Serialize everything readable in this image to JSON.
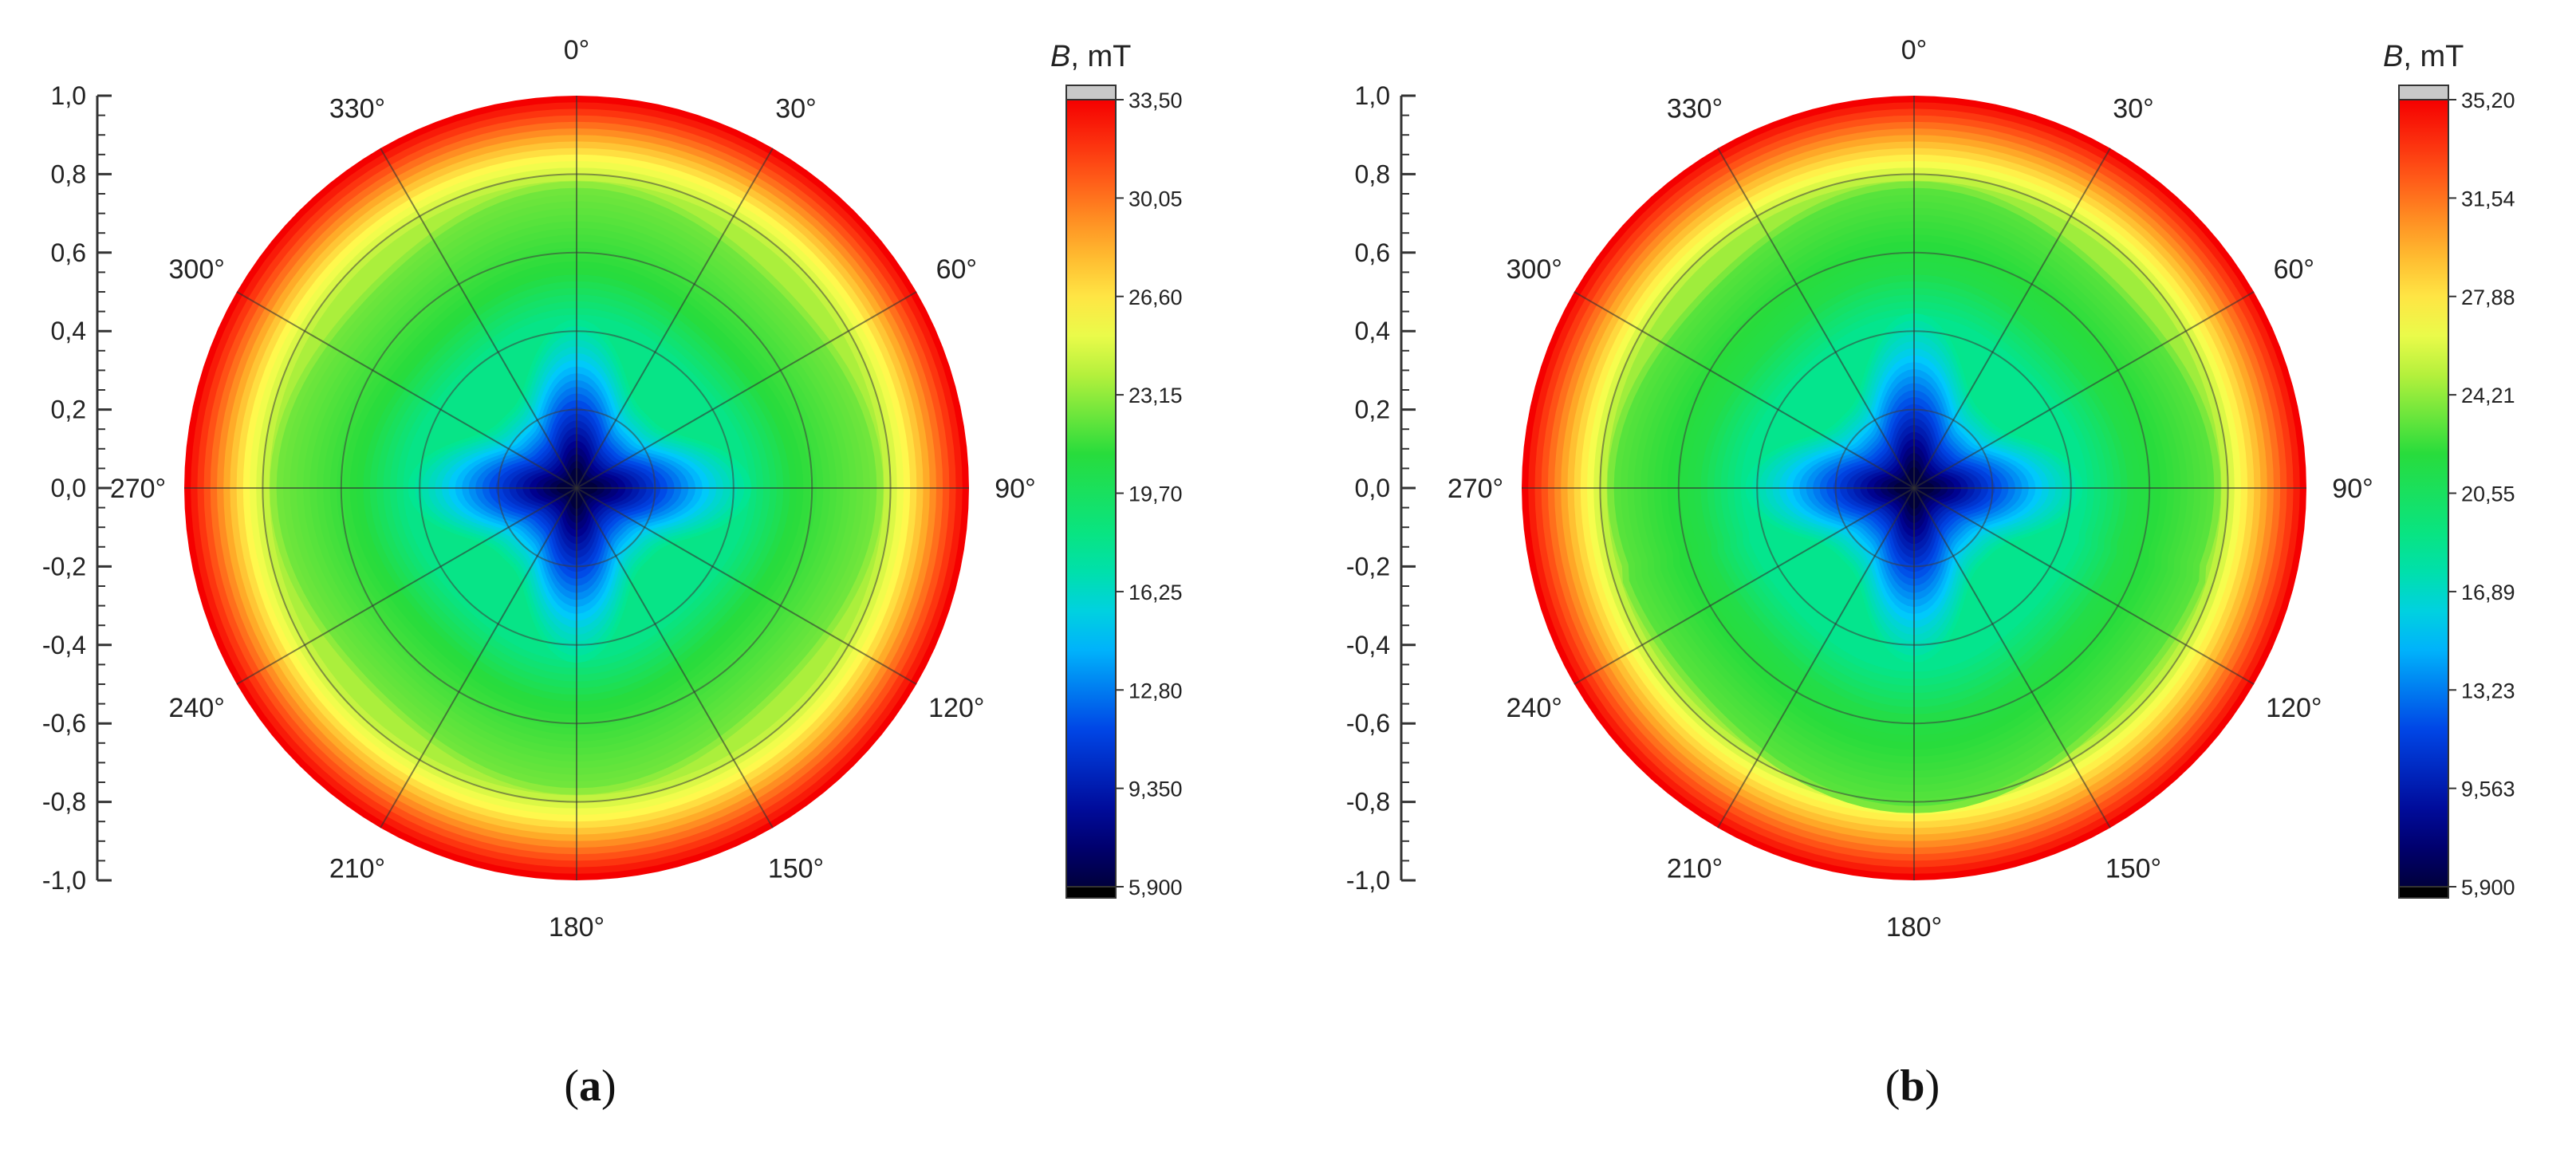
{
  "chart_data": [
    {
      "type": "heatmap",
      "subtype": "polar-contour",
      "panel_label": "a",
      "colorbar_title_var": "B",
      "colorbar_title_unit": ", mT",
      "y_ticks": [
        "1,0",
        "0,8",
        "0,6",
        "0,4",
        "0,2",
        "0,0",
        "-0,2",
        "-0,4",
        "-0,6",
        "-0,8",
        "-1,0"
      ],
      "ylim": [
        -1.0,
        1.0
      ],
      "angles": [
        0,
        30,
        60,
        90,
        120,
        150,
        180,
        210,
        240,
        270,
        300,
        330
      ],
      "angle_labels": [
        "0°",
        "30°",
        "60°",
        "90°",
        "120°",
        "150°",
        "180°",
        "210°",
        "240°",
        "270°",
        "300°",
        "330°"
      ],
      "colorbar_ticks": [
        "33,50",
        "30,05",
        "26,60",
        "23,15",
        "19,70",
        "16,25",
        "12,80",
        "9,350",
        "5,900"
      ],
      "colorbar_range": [
        5.9,
        33.5
      ],
      "rings_r": [
        0.05,
        0.2,
        0.35,
        0.55,
        0.75,
        0.85,
        0.92,
        0.97,
        1.0
      ],
      "rings_B": [
        5.9,
        11.0,
        16.0,
        21.0,
        22.5,
        26.0,
        29.5,
        32.0,
        33.5
      ],
      "lobe_strength": [
        0.55,
        0.6,
        0.6,
        0.55
      ],
      "side_bulge": 0.0
    },
    {
      "type": "heatmap",
      "subtype": "polar-contour",
      "panel_label": "b",
      "colorbar_title_var": "B",
      "colorbar_title_unit": ", mT",
      "y_ticks": [
        "1,0",
        "0,8",
        "0,6",
        "0,4",
        "0,2",
        "0,0",
        "-0,2",
        "-0,4",
        "-0,6",
        "-0,8",
        "-1,0"
      ],
      "ylim": [
        -1.0,
        1.0
      ],
      "angles": [
        0,
        30,
        60,
        90,
        120,
        150,
        180,
        210,
        240,
        270,
        300,
        330
      ],
      "angle_labels": [
        "0°",
        "30°",
        "60°",
        "90°",
        "120°",
        "150°",
        "180°",
        "210°",
        "240°",
        "270°",
        "300°",
        "330°"
      ],
      "colorbar_ticks": [
        "35,20",
        "31,54",
        "27,88",
        "24,21",
        "20,55",
        "16,89",
        "13,23",
        "9,563",
        "5,900"
      ],
      "colorbar_range": [
        5.9,
        35.2
      ],
      "rings_r": [
        0.05,
        0.2,
        0.35,
        0.55,
        0.75,
        0.85,
        0.92,
        0.97,
        1.0
      ],
      "rings_B": [
        5.9,
        11.5,
        16.5,
        21.5,
        23.0,
        27.5,
        31.0,
        33.5,
        35.2
      ],
      "lobe_strength": [
        0.6,
        0.55,
        0.6,
        0.55
      ],
      "side_bulge": 0.06
    }
  ]
}
